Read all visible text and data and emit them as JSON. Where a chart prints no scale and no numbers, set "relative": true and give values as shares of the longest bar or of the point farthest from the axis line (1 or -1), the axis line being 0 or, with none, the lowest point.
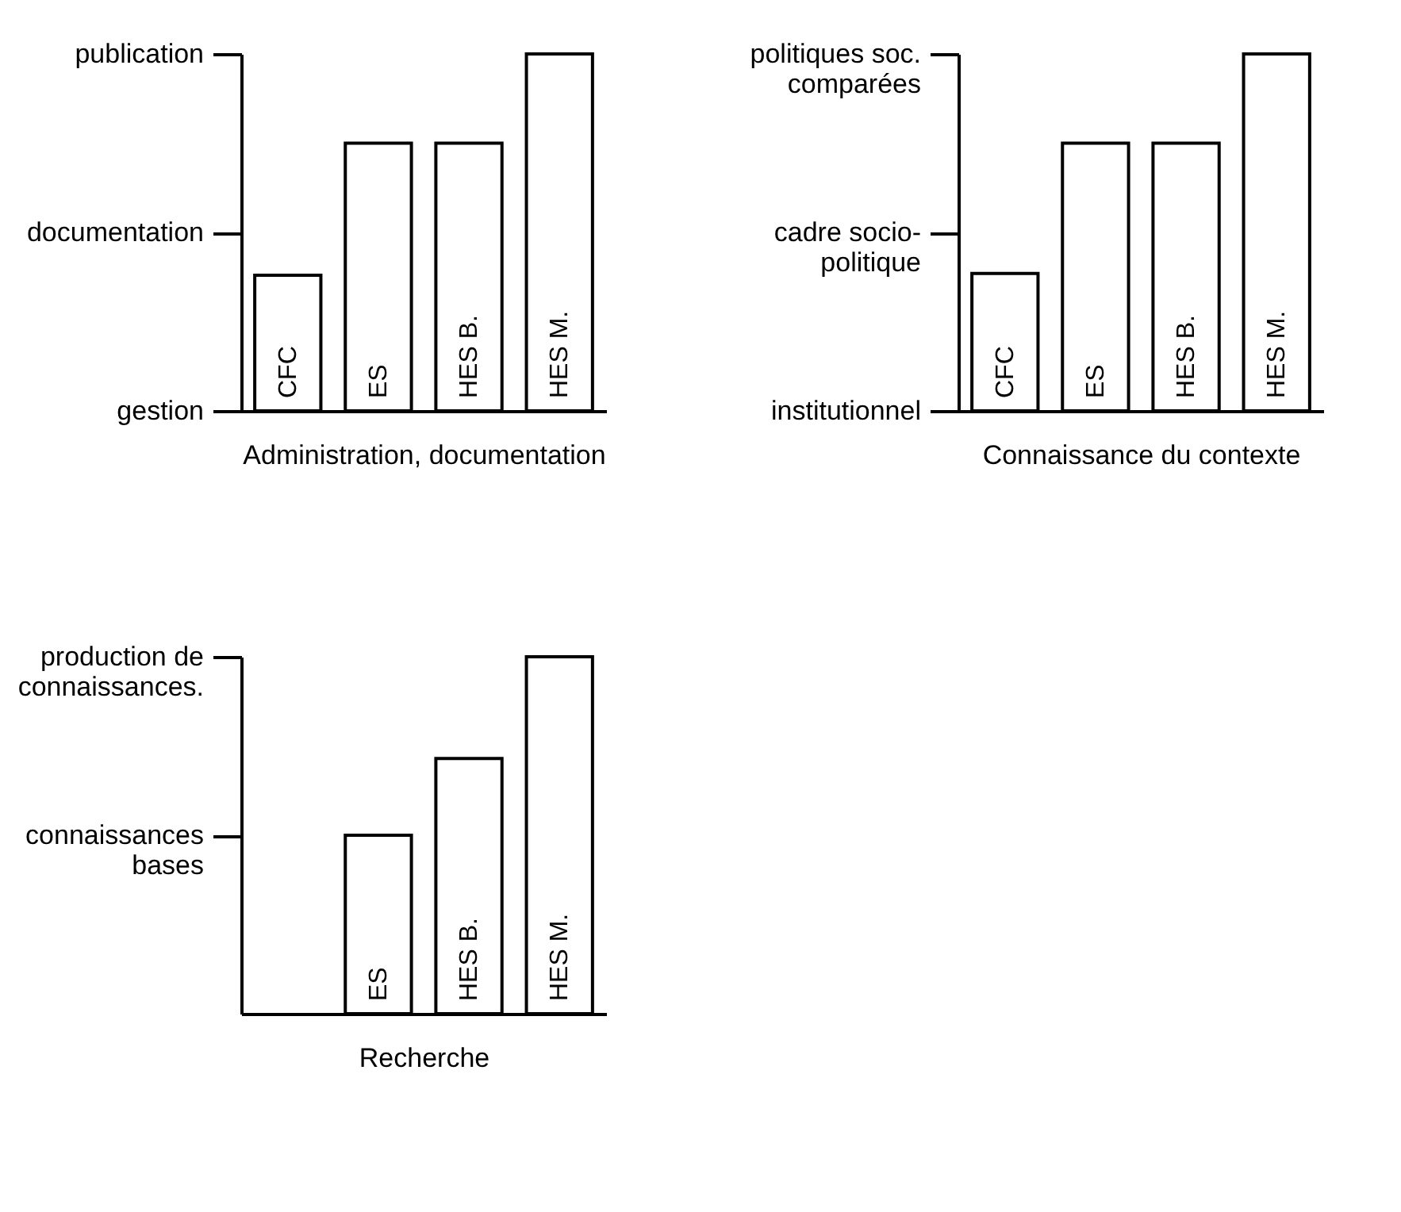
{
  "chart_data": [
    {
      "type": "bar",
      "relative": true,
      "xlabel": "Administration, documentation",
      "categories": [
        "CFC",
        "ES",
        "HES B.",
        "HES M."
      ],
      "values": [
        0.38,
        0.75,
        0.75,
        1
      ],
      "color": "#ffffff",
      "annotations": [
        "publication",
        "documentation",
        "gestion"
      ]
    },
    {
      "type": "bar",
      "relative": true,
      "xlabel": "Connaissance du contexte",
      "categories": [
        "CFC",
        "ES",
        "HES B.",
        "HES M."
      ],
      "values": [
        0.385,
        0.75,
        0.75,
        1
      ],
      "color": "#ffffff",
      "annotations": [
        "politiques soc.\ncomparées",
        "cadre socio-\npolitique",
        "institutionnel"
      ]
    },
    {
      "type": "bar",
      "relative": true,
      "xlabel": "Recherche",
      "categories": [
        null,
        "ES",
        "HES B.",
        "HES M."
      ],
      "values": [
        null,
        0.5,
        0.715,
        1
      ],
      "color": "#ffffff",
      "annotations": [
        "production de\nconnaissances.",
        "connaissances\nbases"
      ]
    }
  ]
}
